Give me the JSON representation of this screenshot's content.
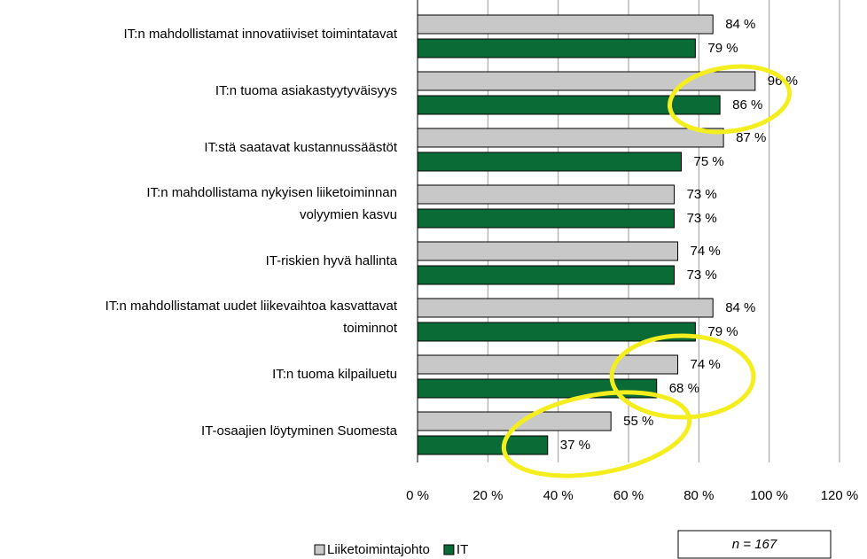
{
  "chart_data": {
    "type": "bar",
    "orientation": "horizontal",
    "categories": [
      "IT:n mahdollistamat innovatiiviset toimintatavat",
      "IT:n tuoma asiakastyytyväisyys",
      "IT:stä saatavat kustannussäästöt",
      "IT:n mahdollistama nykyisen liiketoiminnan\nvolyymien kasvu",
      "IT-riskien hyvä hallinta",
      "IT:n mahdollistamat uudet liikevaihtoa kasvattavat\ntoiminnot",
      "IT:n tuoma kilpailuetu",
      "IT-osaajien löytyminen Suomesta"
    ],
    "series": [
      {
        "name": "Liiketoimintajohto",
        "color": "#c8c8c8",
        "values": [
          84,
          96,
          87,
          73,
          74,
          84,
          74,
          55
        ],
        "value_labels": [
          "84 %",
          "96 %",
          "87 %",
          "73 %",
          "74 %",
          "84 %",
          "74 %",
          "55 %"
        ]
      },
      {
        "name": "IT",
        "color": "#0b6b37",
        "values": [
          79,
          86,
          75,
          73,
          73,
          79,
          68,
          37
        ],
        "value_labels": [
          "79 %",
          "86 %",
          "75 %",
          "73 %",
          "73 %",
          "79 %",
          "68 %",
          "37 %"
        ]
      }
    ],
    "xlim": [
      0,
      120
    ],
    "xticks": [
      {
        "value": 0,
        "label": "0 %"
      },
      {
        "value": 20,
        "label": "20 %"
      },
      {
        "value": 40,
        "label": "40 %"
      },
      {
        "value": 60,
        "label": "60 %"
      },
      {
        "value": 80,
        "label": "80 %"
      },
      {
        "value": 100,
        "label": "100 %"
      },
      {
        "value": 120,
        "label": "120 %"
      }
    ],
    "grid": true,
    "legend": "bottom",
    "annotation": "n = 167"
  }
}
